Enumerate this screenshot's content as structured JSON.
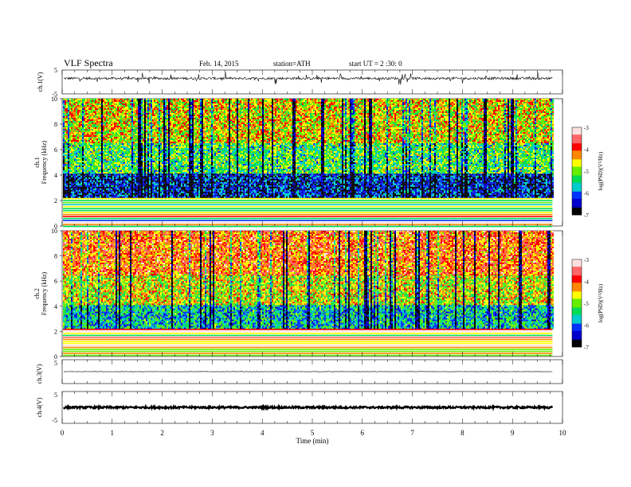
{
  "header": {
    "title": "VLF  Spectra",
    "date": "Feb. 14, 2015",
    "station": "station=ATH",
    "start": "start  UT  =   2  :30: 0"
  },
  "chart_data": [
    {
      "id": "ch1-waveform",
      "type": "line",
      "ylabel": "ch.1(V)",
      "ylim": [
        -5,
        5
      ],
      "yticks": [
        "5",
        "-5"
      ],
      "baseline": 1.5,
      "noise_amplitude": 0.5,
      "spike_amplitude": 2.5
    },
    {
      "id": "ch1-spectrogram",
      "type": "heatmap",
      "ylabel_channel": "ch.1",
      "ylabel": "Frequency  (kHz)",
      "ylim": [
        0,
        10
      ],
      "yticks": [
        "0",
        "2",
        "4",
        "6",
        "8",
        "10"
      ],
      "colorbar": {
        "label": "log(PSD)(V²/Hz)",
        "range": [
          -7,
          -3
        ],
        "ticks": [
          "-3",
          "-4",
          "-5",
          "-6",
          "-7"
        ]
      },
      "bands": [
        {
          "from_khz": 0,
          "to_khz": 2.2,
          "level": "horizontal-lines"
        },
        {
          "from_khz": 2.2,
          "to_khz": 4.2,
          "level": -6.3
        },
        {
          "from_khz": 4.2,
          "to_khz": 6.5,
          "level": -5.2
        },
        {
          "from_khz": 6.5,
          "to_khz": 10,
          "level": -4.6
        }
      ]
    },
    {
      "id": "ch2-spectrogram",
      "type": "heatmap",
      "ylabel_channel": "ch.2",
      "ylabel": "Frequency  (kHz)",
      "ylim": [
        0,
        10
      ],
      "yticks": [
        "0",
        "2",
        "4",
        "6",
        "8",
        "10"
      ],
      "colorbar": {
        "label": "log(PSD)(V²/Hz)",
        "range": [
          -7,
          -3
        ],
        "ticks": [
          "-3",
          "-4",
          "-5",
          "-6",
          "-7"
        ]
      },
      "bands": [
        {
          "from_khz": 0,
          "to_khz": 2.2,
          "level": "horizontal-lines"
        },
        {
          "from_khz": 2.2,
          "to_khz": 4.2,
          "level": -5.6
        },
        {
          "from_khz": 4.2,
          "to_khz": 6.5,
          "level": -4.7
        },
        {
          "from_khz": 6.5,
          "to_khz": 10,
          "level": -4.1
        }
      ]
    },
    {
      "id": "ch3-waveform",
      "type": "line",
      "ylabel": "ch.3(V)",
      "ylim": [
        -5,
        5
      ],
      "yticks": [
        "5"
      ],
      "baseline": 0,
      "noise_amplitude": 0.1
    },
    {
      "id": "ch4-waveform",
      "type": "line",
      "ylabel": "ch.4(V)",
      "ylim": [
        -5,
        5
      ],
      "yticks": [
        "5",
        "-5"
      ],
      "baseline": 0,
      "noise_amplitude": 0.3
    }
  ],
  "xaxis": {
    "label": "Time  (min)",
    "xlim": [
      0,
      10
    ],
    "data_end": 9.8,
    "ticks": [
      "0",
      "1",
      "2",
      "3",
      "4",
      "5",
      "6",
      "7",
      "8",
      "9",
      "10"
    ]
  },
  "colors": {
    "colormap": [
      "#000000",
      "#0000cc",
      "#0033ff",
      "#00cccc",
      "#00dd55",
      "#66ee00",
      "#ffff00",
      "#ff8800",
      "#ff0000",
      "#ff6666",
      "#ffe0e0"
    ]
  }
}
